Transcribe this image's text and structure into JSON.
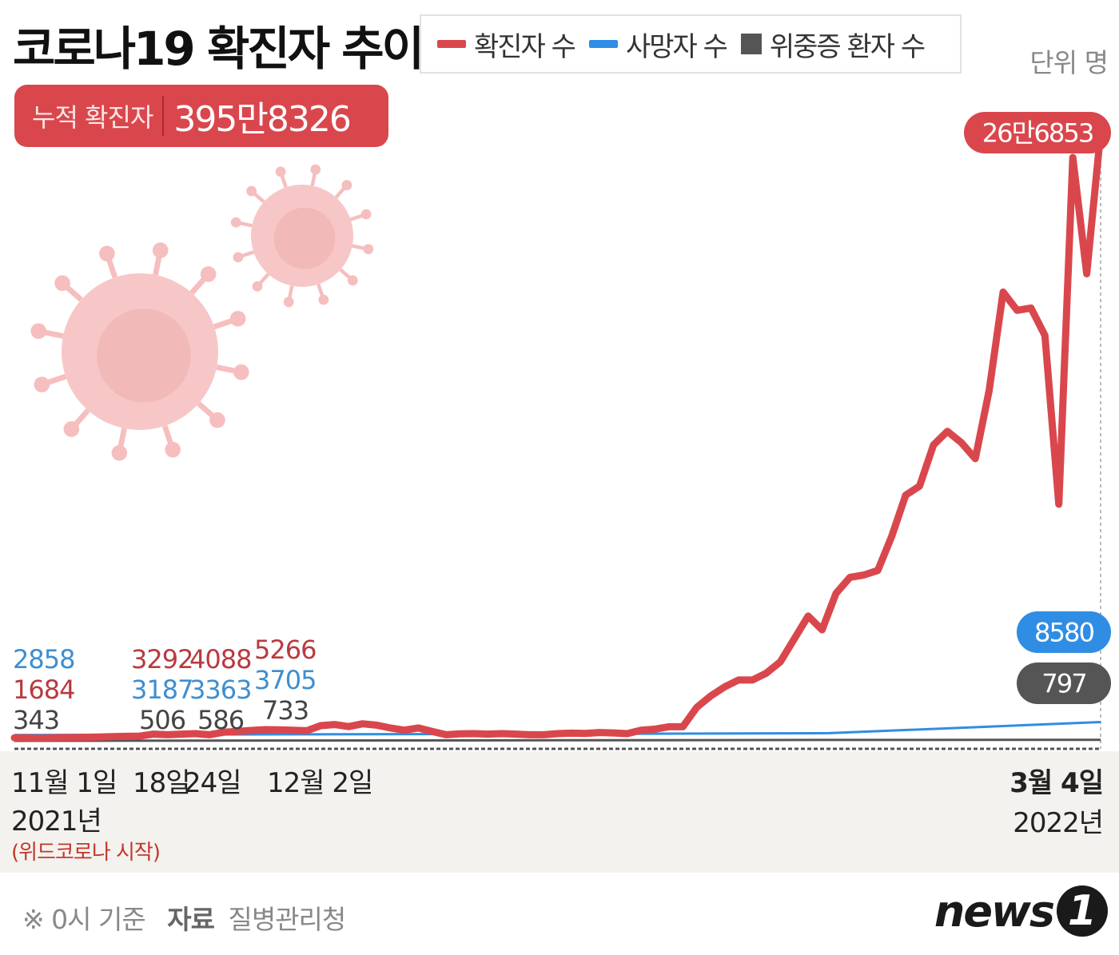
{
  "chart_data": {
    "type": "line",
    "title": "코로나19 확진자 추이",
    "unit_label": "단위 명",
    "cumulative": {
      "label": "누적 확진자",
      "value": "395만8326"
    },
    "series": [
      {
        "name": "확진자 수",
        "color": "#d9474d",
        "values": [
          1684,
          1600,
          1500,
          1700,
          1800,
          1900,
          2000,
          2200,
          2300,
          2400,
          3292,
          3000,
          3300,
          3500,
          3000,
          4088,
          4500,
          4900,
          5266,
          5200,
          5000,
          4800,
          7000,
          7500,
          6600,
          7800,
          7200,
          6000,
          5000,
          6000,
          4500,
          3000,
          3400,
          3500,
          3300,
          3500,
          3300,
          3000,
          3000,
          3500,
          3700,
          3600,
          4000,
          3800,
          3500,
          5000,
          5500,
          6500,
          6500,
          15000,
          20000,
          24000,
          27000,
          27000,
          30000,
          35000,
          45000,
          55000,
          49000,
          65000,
          72000,
          73000,
          75000,
          90000,
          108000,
          112000,
          130000,
          136000,
          131000,
          124000,
          154000,
          197000,
          189000,
          190000,
          178000,
          104000,
          256000,
          205000,
          266853
        ]
      },
      {
        "name": "사망자 수",
        "color": "#2f8de4",
        "values": [
          2858,
          3187,
          3363,
          3705,
          8580
        ]
      },
      {
        "name": "위중증 환자 수",
        "color": "#555555",
        "values": [
          343,
          506,
          586,
          733,
          797
        ]
      }
    ],
    "point_labels": [
      {
        "text": "2858",
        "color": "#3d8ed1"
      },
      {
        "text": "1684",
        "color": "#b83a3f"
      },
      {
        "text": "343",
        "color": "#444444"
      },
      {
        "text": "3292",
        "color": "#b83a3f"
      },
      {
        "text": "3187",
        "color": "#3d8ed1"
      },
      {
        "text": "506",
        "color": "#444444"
      },
      {
        "text": "4088",
        "color": "#b83a3f"
      },
      {
        "text": "3363",
        "color": "#3d8ed1"
      },
      {
        "text": "586",
        "color": "#444444"
      },
      {
        "text": "5266",
        "color": "#b83a3f"
      },
      {
        "text": "3705",
        "color": "#3d8ed1"
      },
      {
        "text": "733",
        "color": "#444444"
      }
    ],
    "end_labels": {
      "confirmed": "26만6853",
      "deaths": "8580",
      "critical": "797"
    },
    "x_labels": [
      "11월 1일",
      "18일",
      "24일",
      "12월 2일",
      "3월 4일"
    ],
    "years": {
      "start": "2021년",
      "end": "2022년"
    },
    "note": "(위드코로나 시작)"
  },
  "footer": {
    "basis": "※ 0시 기준",
    "source_label": "자료",
    "source": "질병관리청"
  },
  "logo": {
    "text": "news",
    "mark": "1"
  }
}
